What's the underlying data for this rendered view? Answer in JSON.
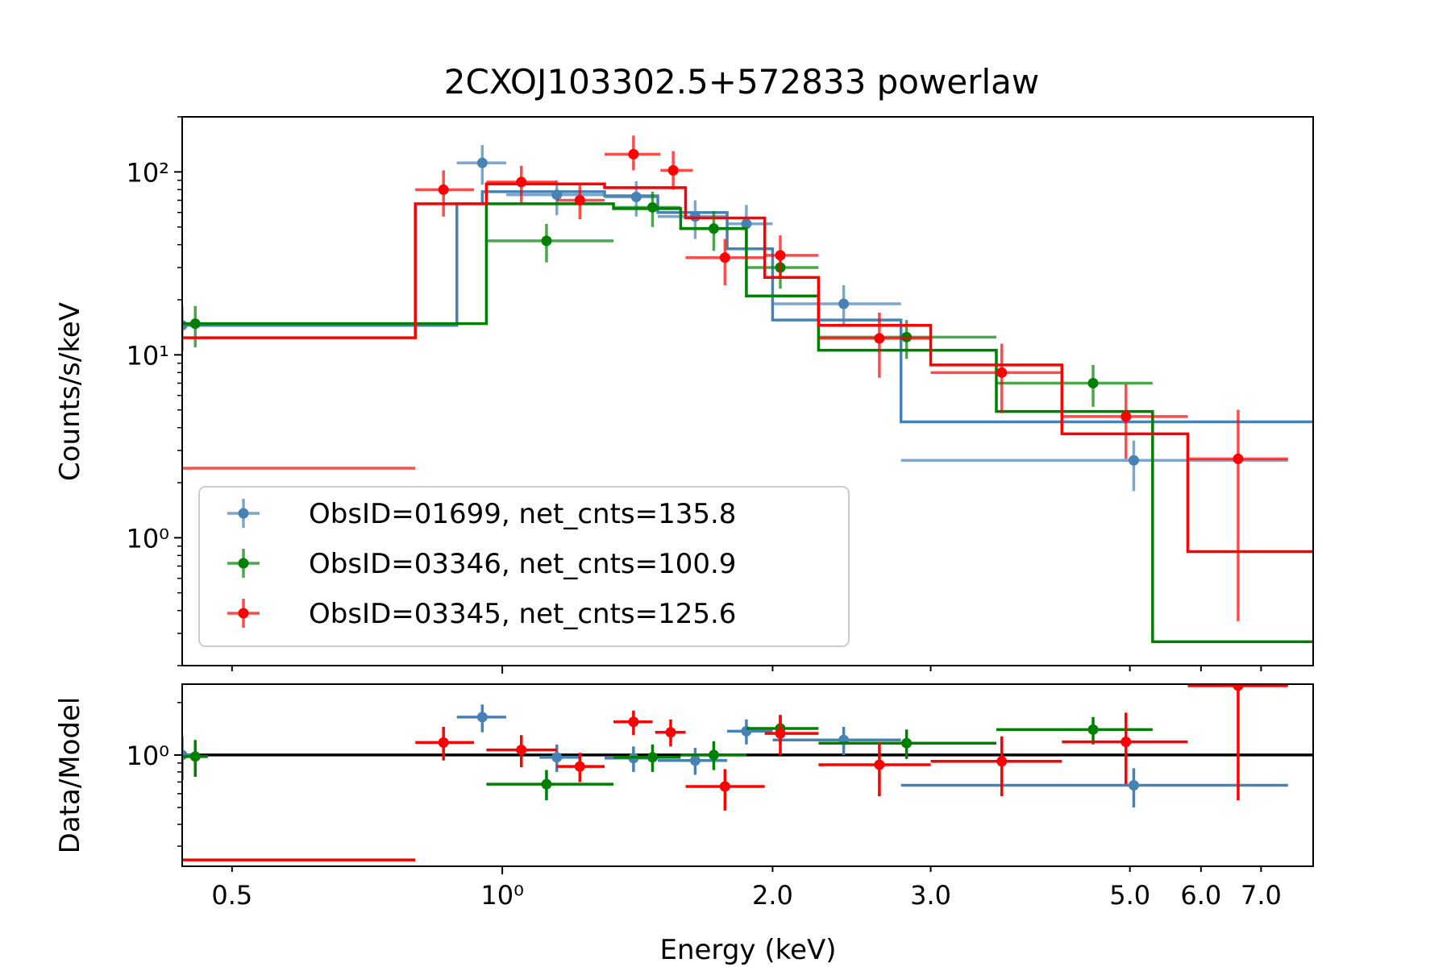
{
  "chart_data": {
    "type": "scatter",
    "title": "2CXOJ103302.5+572833 powerlaw",
    "xlabel": "Energy (keV)",
    "xscale": "log",
    "xlim": [
      0.44,
      8.0
    ],
    "xticks": [
      {
        "value": 0.5,
        "label": "0.5"
      },
      {
        "value": 1.0,
        "label": "10⁰",
        "major": true
      },
      {
        "value": 2.0,
        "label": "2.0"
      },
      {
        "value": 3.0,
        "label": "3.0"
      },
      {
        "value": 5.0,
        "label": "5.0"
      },
      {
        "value": 6.0,
        "label": "6.0"
      },
      {
        "value": 7.0,
        "label": "7.0"
      }
    ],
    "top_panel": {
      "ylabel": "Counts/s/keV",
      "yscale": "log",
      "ylim": [
        0.2,
        200
      ],
      "yticks": [
        {
          "value": 1,
          "label": "10⁰"
        },
        {
          "value": 10,
          "label": "10¹"
        },
        {
          "value": 100,
          "label": "10²"
        }
      ]
    },
    "bottom_panel": {
      "ylabel": "Data/Model",
      "yscale": "log",
      "ylim": [
        0.23,
        2.55
      ],
      "yticks": [
        {
          "value": 1,
          "label": "10⁰"
        }
      ],
      "reference_line": 1.0
    },
    "legend": {
      "position": "lower-left",
      "entries": [
        {
          "label": "ObsID=01699, net_cnts=135.8",
          "color": "#4682b4"
        },
        {
          "label": "ObsID=03346, net_cnts=100.9",
          "color": "#008000"
        },
        {
          "label": "ObsID=03345, net_cnts=125.6",
          "color": "#ff0000"
        }
      ]
    },
    "series": [
      {
        "name": "ObsID=01699, net_cnts=135.8",
        "color": "#4682b4",
        "data": [
          {
            "x": 0.44,
            "xlo": 0.44,
            "xhi": 0.46,
            "y": 14.5,
            "ylo": 10.5,
            "yhi": 18.5
          },
          {
            "x": 0.95,
            "xlo": 0.89,
            "xhi": 1.01,
            "y": 112,
            "ylo": 85,
            "yhi": 140
          },
          {
            "x": 1.15,
            "xlo": 1.01,
            "xhi": 1.3,
            "y": 75,
            "ylo": 58,
            "yhi": 90
          },
          {
            "x": 1.41,
            "xlo": 1.3,
            "xhi": 1.49,
            "y": 73,
            "ylo": 57,
            "yhi": 89
          },
          {
            "x": 1.64,
            "xlo": 1.49,
            "xhi": 1.78,
            "y": 57,
            "ylo": 43,
            "yhi": 70
          },
          {
            "x": 1.87,
            "xlo": 1.78,
            "xhi": 2.0,
            "y": 52,
            "ylo": 39,
            "yhi": 66
          },
          {
            "x": 2.4,
            "xlo": 2.0,
            "xhi": 2.78,
            "y": 19,
            "ylo": 14.5,
            "yhi": 24
          },
          {
            "x": 5.05,
            "xlo": 2.78,
            "xhi": 7.5,
            "y": 2.65,
            "ylo": 1.8,
            "yhi": 3.4
          }
        ],
        "model": {
          "edges": [
            0.44,
            0.89,
            0.95,
            1.3,
            1.49,
            1.78,
            2.0,
            2.78,
            8.0
          ],
          "values": [
            14.5,
            67,
            78,
            74,
            60,
            38,
            15.5,
            4.3
          ]
        },
        "ratio": [
          {
            "x": 0.44,
            "xlo": 0.44,
            "xhi": 0.46,
            "y": 1.0,
            "ylo": 0.72,
            "yhi": 1.28
          },
          {
            "x": 0.95,
            "xlo": 0.89,
            "xhi": 1.01,
            "y": 1.65,
            "ylo": 1.35,
            "yhi": 1.95
          },
          {
            "x": 1.15,
            "xlo": 1.1,
            "xhi": 1.22,
            "y": 0.97,
            "ylo": 0.8,
            "yhi": 1.15
          },
          {
            "x": 1.4,
            "xlo": 1.3,
            "xhi": 1.49,
            "y": 0.96,
            "ylo": 0.8,
            "yhi": 1.12
          },
          {
            "x": 1.64,
            "xlo": 1.49,
            "xhi": 1.78,
            "y": 0.93,
            "ylo": 0.77,
            "yhi": 1.1
          },
          {
            "x": 1.87,
            "xlo": 1.78,
            "xhi": 2.0,
            "y": 1.37,
            "ylo": 1.15,
            "yhi": 1.6
          },
          {
            "x": 2.4,
            "xlo": 2.0,
            "xhi": 2.78,
            "y": 1.22,
            "ylo": 1.0,
            "yhi": 1.45
          },
          {
            "x": 5.05,
            "xlo": 2.78,
            "xhi": 7.5,
            "y": 0.67,
            "ylo": 0.5,
            "yhi": 0.84
          }
        ]
      },
      {
        "name": "ObsID=03346, net_cnts=100.9",
        "color": "#008000",
        "data": [
          {
            "x": 0.455,
            "xlo": 0.44,
            "xhi": 0.47,
            "y": 14.8,
            "ylo": 11,
            "yhi": 18.5
          },
          {
            "x": 1.12,
            "xlo": 0.96,
            "xhi": 1.33,
            "y": 42,
            "ylo": 32,
            "yhi": 52
          },
          {
            "x": 1.47,
            "xlo": 1.33,
            "xhi": 1.58,
            "y": 64,
            "ylo": 50,
            "yhi": 78
          },
          {
            "x": 1.72,
            "xlo": 1.58,
            "xhi": 1.87,
            "y": 49,
            "ylo": 37,
            "yhi": 61
          },
          {
            "x": 2.04,
            "xlo": 1.87,
            "xhi": 2.25,
            "y": 30,
            "ylo": 23,
            "yhi": 37
          },
          {
            "x": 2.82,
            "xlo": 2.25,
            "xhi": 3.55,
            "y": 12.5,
            "ylo": 9.5,
            "yhi": 15.5
          },
          {
            "x": 4.55,
            "xlo": 3.55,
            "xhi": 5.3,
            "y": 7.0,
            "ylo": 5.2,
            "yhi": 8.8
          }
        ],
        "model": {
          "edges": [
            0.44,
            0.96,
            1.33,
            1.58,
            1.87,
            2.25,
            3.55,
            5.3,
            8.0
          ],
          "values": [
            14.8,
            67,
            63,
            49,
            21,
            10.6,
            4.9,
            0.27
          ]
        },
        "ratio": [
          {
            "x": 0.455,
            "xlo": 0.44,
            "xhi": 0.47,
            "y": 0.98,
            "ylo": 0.75,
            "yhi": 1.22
          },
          {
            "x": 1.12,
            "xlo": 0.96,
            "xhi": 1.33,
            "y": 0.68,
            "ylo": 0.55,
            "yhi": 0.82
          },
          {
            "x": 1.47,
            "xlo": 1.33,
            "xhi": 1.58,
            "y": 0.97,
            "ylo": 0.8,
            "yhi": 1.15
          },
          {
            "x": 1.72,
            "xlo": 1.58,
            "xhi": 1.87,
            "y": 1.0,
            "ylo": 0.82,
            "yhi": 1.2
          },
          {
            "x": 2.04,
            "xlo": 1.87,
            "xhi": 2.25,
            "y": 1.42,
            "ylo": 1.17,
            "yhi": 1.67
          },
          {
            "x": 2.82,
            "xlo": 2.25,
            "xhi": 3.55,
            "y": 1.17,
            "ylo": 0.95,
            "yhi": 1.4
          },
          {
            "x": 4.55,
            "xlo": 3.55,
            "xhi": 5.3,
            "y": 1.4,
            "ylo": 1.15,
            "yhi": 1.65
          }
        ]
      },
      {
        "name": "ObsID=03345, net_cnts=125.6",
        "color": "#ff0000",
        "data": [
          {
            "x": 0.44,
            "xlo": 0.44,
            "xhi": 0.8,
            "y": 2.4,
            "hline": true
          },
          {
            "x": 0.86,
            "xlo": 0.8,
            "xhi": 0.93,
            "y": 80,
            "ylo": 57,
            "yhi": 102
          },
          {
            "x": 1.05,
            "xlo": 0.96,
            "xhi": 1.15,
            "y": 88,
            "ylo": 68,
            "yhi": 108
          },
          {
            "x": 1.22,
            "xlo": 1.15,
            "xhi": 1.3,
            "y": 70,
            "ylo": 55,
            "yhi": 86
          },
          {
            "x": 1.4,
            "xlo": 1.3,
            "xhi": 1.5,
            "y": 125,
            "ylo": 102,
            "yhi": 158
          },
          {
            "x": 1.55,
            "xlo": 1.5,
            "xhi": 1.63,
            "y": 102,
            "ylo": 80,
            "yhi": 130
          },
          {
            "x": 1.77,
            "xlo": 1.6,
            "xhi": 1.96,
            "y": 34,
            "ylo": 24,
            "yhi": 43
          },
          {
            "x": 2.04,
            "xlo": 1.96,
            "xhi": 2.25,
            "y": 35,
            "ylo": 27,
            "yhi": 45
          },
          {
            "x": 2.63,
            "xlo": 2.25,
            "xhi": 3.0,
            "y": 12.3,
            "ylo": 7.5,
            "yhi": 17
          },
          {
            "x": 3.6,
            "xlo": 3.0,
            "xhi": 4.2,
            "y": 8.0,
            "ylo": 4.8,
            "yhi": 11.5
          },
          {
            "x": 4.95,
            "xlo": 4.2,
            "xhi": 5.8,
            "y": 4.6,
            "ylo": 2.7,
            "yhi": 6.9
          },
          {
            "x": 6.6,
            "xlo": 5.8,
            "xhi": 7.5,
            "y": 2.7,
            "ylo": 0.35,
            "yhi": 5.0
          }
        ],
        "model": {
          "edges": [
            0.44,
            0.8,
            0.96,
            1.3,
            1.6,
            1.96,
            2.25,
            3.0,
            4.2,
            5.8,
            8.0
          ],
          "values": [
            12.4,
            67,
            86,
            82,
            56,
            26.5,
            14.5,
            8.8,
            3.7,
            0.84
          ]
        },
        "ratio": [
          {
            "x": 0.44,
            "xlo": 0.44,
            "xhi": 0.8,
            "y": 0.25,
            "hline": true
          },
          {
            "x": 0.86,
            "xlo": 0.8,
            "xhi": 0.93,
            "y": 1.18,
            "ylo": 0.93,
            "yhi": 1.45
          },
          {
            "x": 1.05,
            "xlo": 0.96,
            "xhi": 1.15,
            "y": 1.07,
            "ylo": 0.85,
            "yhi": 1.3
          },
          {
            "x": 1.22,
            "xlo": 1.15,
            "xhi": 1.3,
            "y": 0.86,
            "ylo": 0.7,
            "yhi": 1.03
          },
          {
            "x": 1.4,
            "xlo": 1.33,
            "xhi": 1.47,
            "y": 1.55,
            "ylo": 1.3,
            "yhi": 1.8
          },
          {
            "x": 1.54,
            "xlo": 1.48,
            "xhi": 1.6,
            "y": 1.35,
            "ylo": 1.12,
            "yhi": 1.6
          },
          {
            "x": 1.77,
            "xlo": 1.6,
            "xhi": 1.96,
            "y": 0.66,
            "ylo": 0.48,
            "yhi": 0.83
          },
          {
            "x": 2.04,
            "xlo": 1.96,
            "xhi": 2.25,
            "y": 1.33,
            "ylo": 1.0,
            "yhi": 1.7
          },
          {
            "x": 2.63,
            "xlo": 2.25,
            "xhi": 3.0,
            "y": 0.88,
            "ylo": 0.58,
            "yhi": 1.18
          },
          {
            "x": 3.6,
            "xlo": 3.0,
            "xhi": 4.2,
            "y": 0.92,
            "ylo": 0.58,
            "yhi": 1.28
          },
          {
            "x": 4.95,
            "xlo": 4.2,
            "xhi": 5.8,
            "y": 1.19,
            "ylo": 0.68,
            "yhi": 1.75
          },
          {
            "x": 6.6,
            "xlo": 5.8,
            "xhi": 7.5,
            "y": 2.5,
            "ylo": 0.55,
            "yhi": 2.6
          }
        ]
      }
    ]
  }
}
